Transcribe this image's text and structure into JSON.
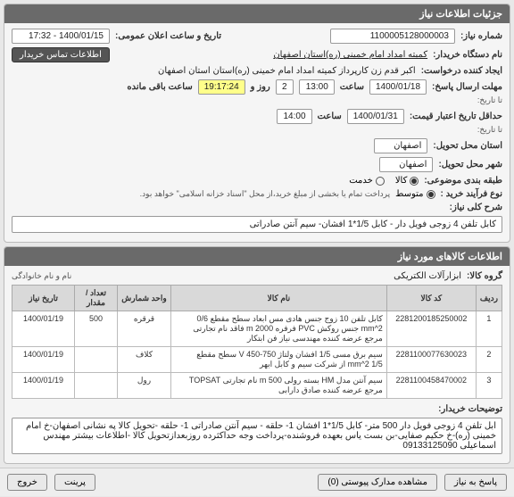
{
  "panels": {
    "need_info_title": "جزئیات اطلاعات نیاز"
  },
  "header": {
    "need_number_label": "شماره نیاز:",
    "need_number": "1100005128000003",
    "announce_label": "تاریخ و ساعت اعلان عمومی:",
    "announce_value": "1400/01/15 - 17:32"
  },
  "buyer": {
    "org_label": "نام دستگاه خریدار:",
    "org_value": "کمیته امداد امام خمینی (ره)استان اصفهان",
    "contact_btn": "اطلاعات تماس خریدار"
  },
  "creator": {
    "label": "ایجاد کننده درخواست:",
    "value": "اکبر قدم زن کارپرداز کمیته امداد امام خمینی (ره)استان استان اصفهان"
  },
  "deadline": {
    "label": "مهلت ارسال پاسخ:",
    "until_label": "تا تاریخ:",
    "date": "1400/01/18",
    "hour_label": "ساعت",
    "hour": "13:00",
    "and": "و",
    "days": "2",
    "days_label": "روز و",
    "countdown": "19:17:24",
    "remain_label": "ساعت باقی مانده"
  },
  "validity": {
    "label": "حداقل تاریخ اعتبار قیمت:",
    "until_label": "تا تاریخ:",
    "date": "1400/01/31",
    "hour_label": "ساعت",
    "hour": "14:00"
  },
  "delivery_state": {
    "label": "استان محل تحویل:",
    "value": "اصفهان"
  },
  "delivery_city": {
    "label": "شهر محل تحویل:",
    "value": "اصفهان"
  },
  "budget": {
    "label": "طبقه بندی موضوعی:",
    "options": {
      "goods": "کالا",
      "service": "خدمت"
    },
    "selected": "goods"
  },
  "process": {
    "label": "نوع فرآیند خرید :",
    "options": {
      "medium": "متوسط"
    },
    "selected": "medium",
    "note": "پرداخت تمام یا بخشی از مبلغ خرید،از محل \"اسناد خزانه اسلامی\" خواهد بود."
  },
  "general_desc": {
    "label": "شرح کلی نیاز:",
    "value": "کابل تلفن 4 زوجی فویل دار - کابل 1/5*1 افشان- سیم آنتن صادراتی"
  },
  "items_panel": {
    "title": "اطلاعات کالاهای مورد نیاز",
    "group_label": "گروه کالا:",
    "group_value": "ابزارآلات الکتریکی",
    "remove_label": "نام و نام خانوادگی"
  },
  "table": {
    "cols": {
      "idx": "ردیف",
      "code": "کد کالا",
      "name": "نام کالا",
      "unit": "واحد شمارش",
      "qty": "تعداد / مقدار",
      "date": "تاریخ نیاز"
    },
    "rows": [
      {
        "idx": "1",
        "code": "2281200185250002",
        "name": "کابل تلفن 10 زوج جنس هادی مس ابعاد سطح مقطع 0/6 mm^2 جنس روکش PVC فرفره 2000 m فاقد نام تجارتی مرجع عرضه کننده مهندسی نیاز فن ابتکار",
        "unit": "قرقره",
        "qty": "500",
        "date": "1400/01/19"
      },
      {
        "idx": "2",
        "code": "2281100077630023",
        "name": "سیم برق مسی 1/5 افشان ولتاژ 750-450 V سطح مقطع mm^2 1/5 از شرکت سیم و کابل ابهر",
        "unit": "کلاف",
        "qty": "",
        "date": "1400/01/19"
      },
      {
        "idx": "3",
        "code": "2281100458470002",
        "name": "سیم آنتن مدل HM بسته رولی 500 m نام تجارتی TOPSAT مرجع عرضه کننده صادق دارابی",
        "unit": "رول",
        "qty": "",
        "date": "1400/01/19"
      }
    ]
  },
  "buyer_notes": {
    "label": "توضیحات خریدار:",
    "value": "ابل تلفن 4 زوجی فویل دار 500 متر- کابل 1/5*1 افشان 1- حلقه - سیم آنتن صادراتی 1- حلقه -تحویل کالا په نشانی اصفهان-خ امام خمینی (ره)-خ حکیم صفایی-بن بست یاس بعهده فروشنده-پرداخت وجه حداکثرده روزبعدازتحویل کالا -اطلاعات بیشتر مهندس اسماعیلی 09133125090"
  },
  "footer": {
    "reply": "پاسخ به نیاز",
    "attachments": "مشاهده مدارک پیوستی (0)",
    "exit": "خروج",
    "print": "پرینت"
  }
}
